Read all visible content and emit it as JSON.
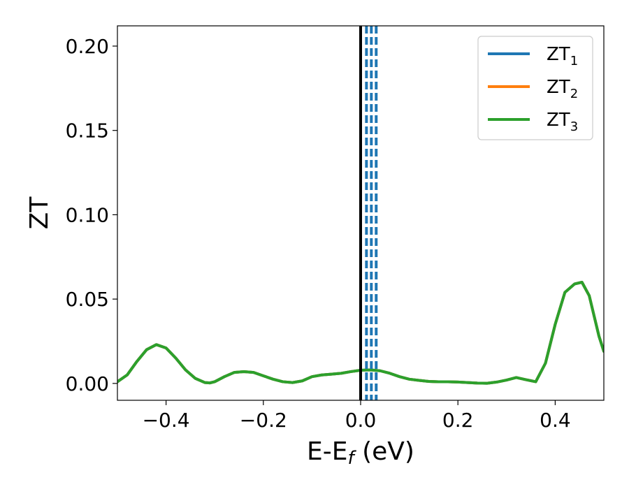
{
  "chart_data": {
    "type": "line",
    "xlabel": "E-E",
    "xlabel_sub": "f",
    "xlabel_unit": " (eV)",
    "ylabel": "ZT",
    "xlim": [
      -0.5,
      0.5
    ],
    "ylim": [
      -0.01,
      0.212
    ],
    "xticks": [
      -0.4,
      -0.2,
      0.0,
      0.2,
      0.4
    ],
    "xtick_labels": [
      "−0.4",
      "−0.2",
      "0.0",
      "0.2",
      "0.4"
    ],
    "yticks": [
      0.0,
      0.05,
      0.1,
      0.15,
      0.2
    ],
    "ytick_labels": [
      "0.00",
      "0.05",
      "0.10",
      "0.15",
      "0.20"
    ],
    "legend_position": "top-right",
    "vertical_line_solid": {
      "x": 0.0,
      "color": "#000000"
    },
    "vertical_lines_dashed": {
      "x": [
        0.012,
        0.022,
        0.032
      ],
      "color": "#1f77b4"
    },
    "x": [
      -0.5,
      -0.48,
      -0.46,
      -0.44,
      -0.42,
      -0.4,
      -0.38,
      -0.36,
      -0.34,
      -0.32,
      -0.31,
      -0.3,
      -0.28,
      -0.26,
      -0.24,
      -0.22,
      -0.2,
      -0.18,
      -0.16,
      -0.14,
      -0.12,
      -0.1,
      -0.08,
      -0.06,
      -0.04,
      -0.02,
      0.0,
      0.02,
      0.04,
      0.06,
      0.08,
      0.1,
      0.12,
      0.14,
      0.16,
      0.18,
      0.2,
      0.22,
      0.24,
      0.26,
      0.28,
      0.3,
      0.32,
      0.34,
      0.36,
      0.38,
      0.4,
      0.42,
      0.44,
      0.455,
      0.47,
      0.48,
      0.49,
      0.5
    ],
    "series": [
      {
        "name": "ZT1",
        "color": "#1f77b4",
        "values": [
          0.001,
          0.005,
          0.013,
          0.02,
          0.023,
          0.021,
          0.015,
          0.008,
          0.003,
          0.0005,
          0.0003,
          0.001,
          0.004,
          0.0065,
          0.007,
          0.0065,
          0.0045,
          0.0025,
          0.001,
          0.0005,
          0.0015,
          0.004,
          0.005,
          0.0055,
          0.006,
          0.007,
          0.0078,
          0.008,
          0.0075,
          0.006,
          0.004,
          0.0025,
          0.0018,
          0.0012,
          0.001,
          0.001,
          0.0008,
          0.0005,
          0.0002,
          0.0001,
          0.0008,
          0.002,
          0.0035,
          0.0022,
          0.001,
          0.012,
          0.035,
          0.054,
          0.059,
          0.06,
          0.052,
          0.04,
          0.028,
          0.019
        ]
      },
      {
        "name": "ZT2",
        "color": "#ff7f0e",
        "values": [
          0.001,
          0.005,
          0.013,
          0.02,
          0.023,
          0.021,
          0.015,
          0.008,
          0.003,
          0.0005,
          0.0003,
          0.001,
          0.004,
          0.0065,
          0.007,
          0.0065,
          0.0045,
          0.0025,
          0.001,
          0.0005,
          0.0015,
          0.004,
          0.005,
          0.0055,
          0.006,
          0.007,
          0.0078,
          0.008,
          0.0075,
          0.006,
          0.004,
          0.0025,
          0.0018,
          0.0012,
          0.001,
          0.001,
          0.0008,
          0.0005,
          0.0002,
          0.0001,
          0.0008,
          0.002,
          0.0035,
          0.0022,
          0.001,
          0.012,
          0.035,
          0.054,
          0.059,
          0.06,
          0.052,
          0.04,
          0.028,
          0.019
        ]
      },
      {
        "name": "ZT3",
        "color": "#2ca02c",
        "values": [
          0.001,
          0.005,
          0.013,
          0.02,
          0.023,
          0.021,
          0.015,
          0.008,
          0.003,
          0.0005,
          0.0003,
          0.001,
          0.004,
          0.0065,
          0.007,
          0.0065,
          0.0045,
          0.0025,
          0.001,
          0.0005,
          0.0015,
          0.004,
          0.005,
          0.0055,
          0.006,
          0.007,
          0.0078,
          0.008,
          0.0075,
          0.006,
          0.004,
          0.0025,
          0.0018,
          0.0012,
          0.001,
          0.001,
          0.0008,
          0.0005,
          0.0002,
          0.0001,
          0.0008,
          0.002,
          0.0035,
          0.0022,
          0.001,
          0.012,
          0.035,
          0.054,
          0.059,
          0.06,
          0.052,
          0.04,
          0.028,
          0.019
        ]
      }
    ],
    "legend": [
      {
        "label": "ZT",
        "sub": "1",
        "color": "#1f77b4"
      },
      {
        "label": "ZT",
        "sub": "2",
        "color": "#ff7f0e"
      },
      {
        "label": "ZT",
        "sub": "3",
        "color": "#2ca02c"
      }
    ]
  }
}
